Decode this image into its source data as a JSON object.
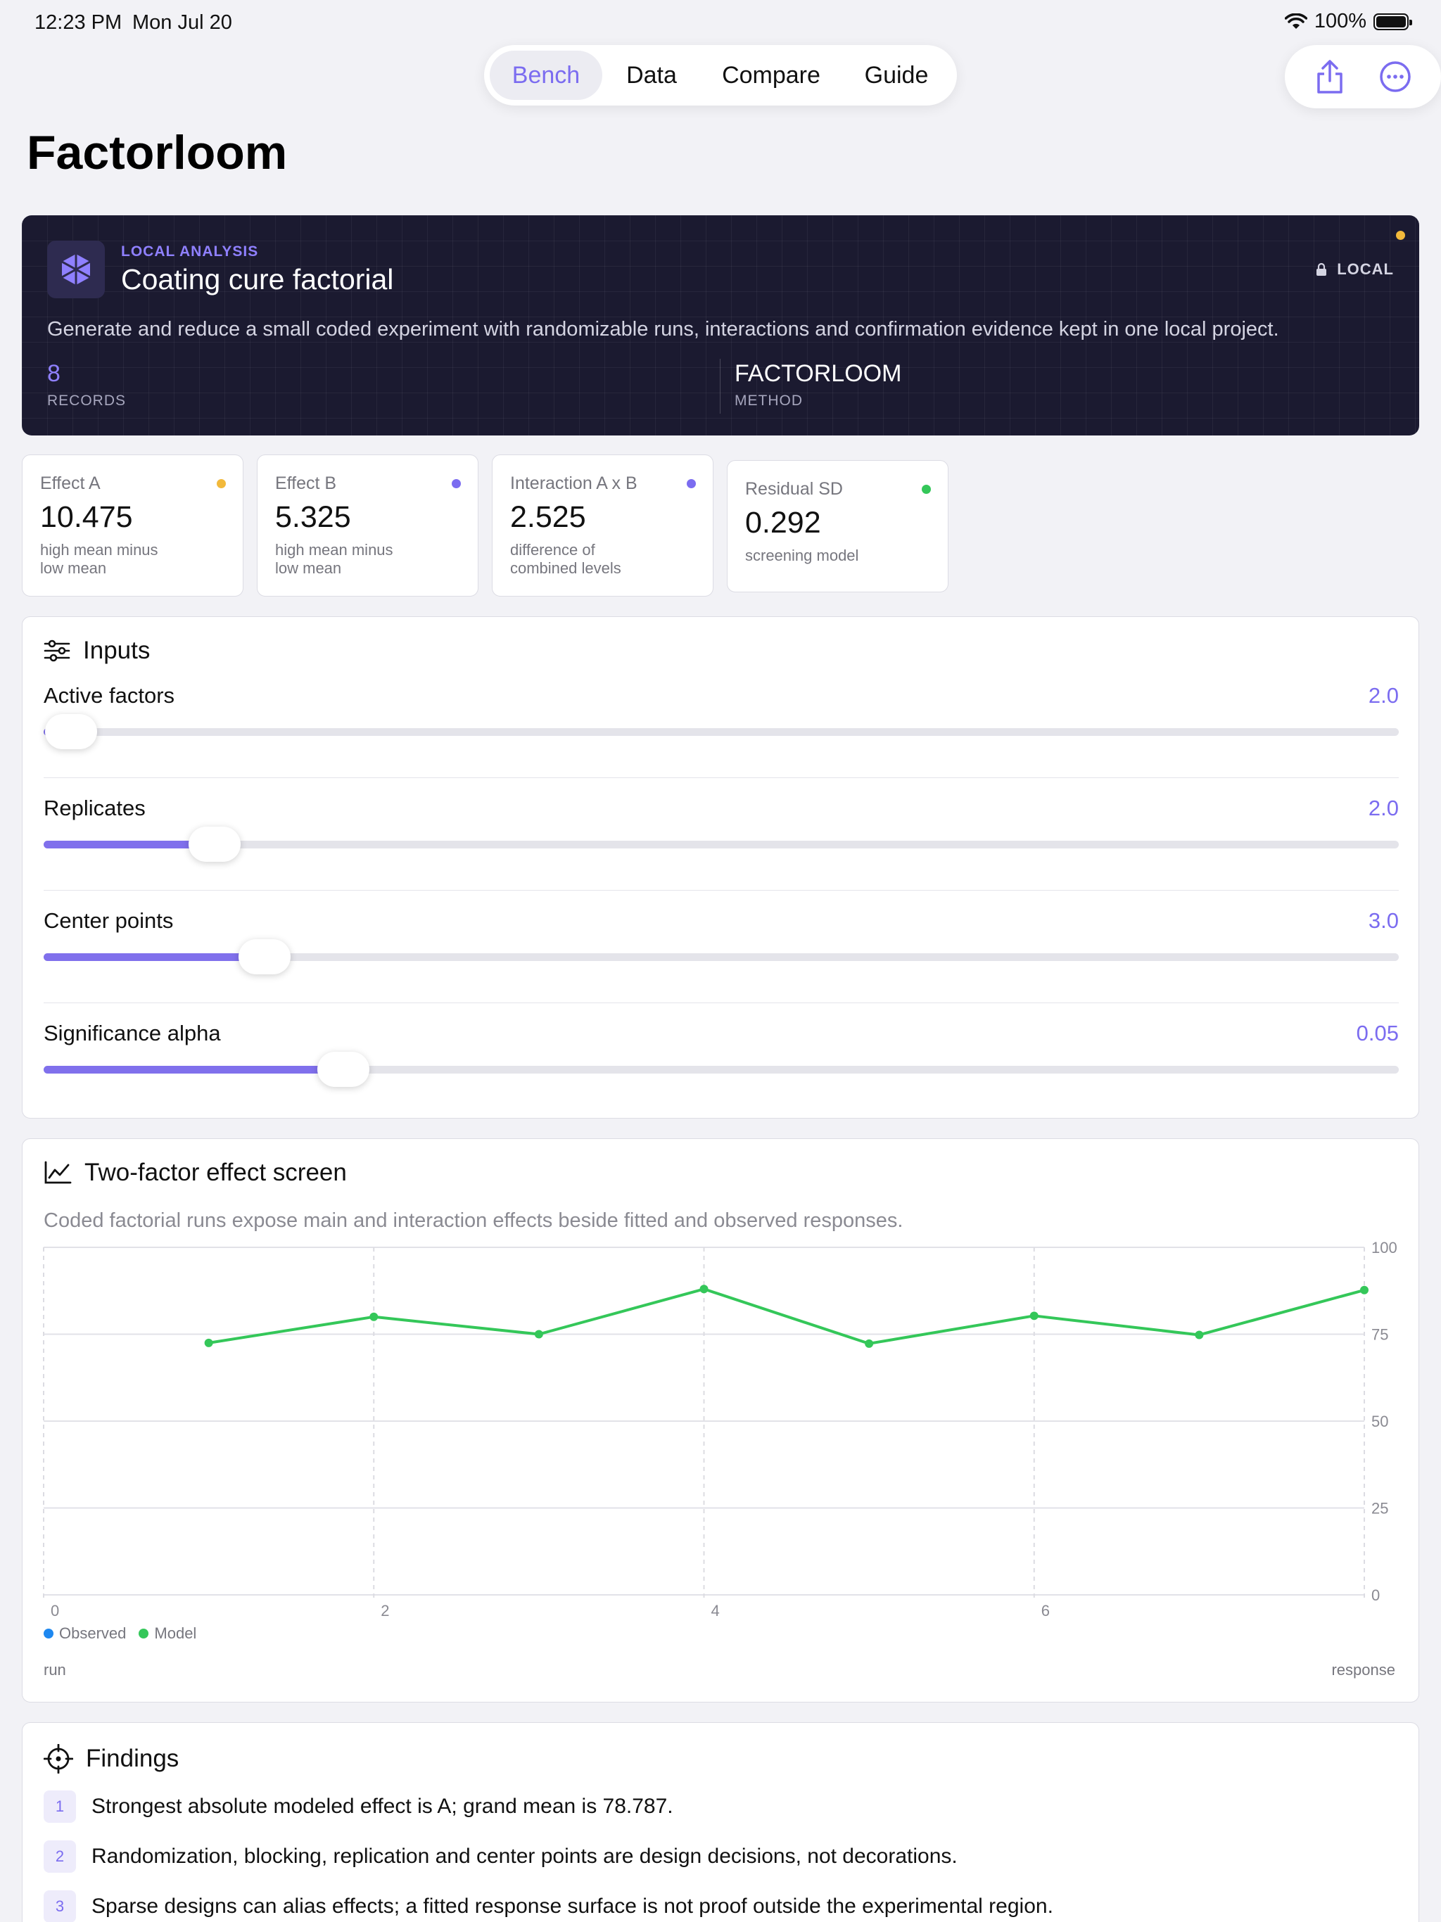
{
  "status": {
    "time": "12:23 PM",
    "date": "Mon Jul 20",
    "battery": "100%"
  },
  "nav": {
    "tabs": [
      "Bench",
      "Data",
      "Compare",
      "Guide"
    ],
    "active": 0
  },
  "page_title": "Factorloom",
  "hero": {
    "eyebrow": "LOCAL ANALYSIS",
    "title": "Coating cure factorial",
    "description": "Generate and reduce a small coded experiment with randomizable runs, interactions and confirmation evidence kept in one local project.",
    "badge": "LOCAL",
    "stat1": {
      "value": "8",
      "label": "RECORDS"
    },
    "stat2": {
      "value": "FACTORLOOM",
      "label": "METHOD"
    }
  },
  "metrics": [
    {
      "label": "Effect A",
      "value": "10.475",
      "note": "high mean minus low mean",
      "color": "#f2b93b"
    },
    {
      "label": "Effect B",
      "value": "5.325",
      "note": "high mean minus low mean",
      "color": "#7b6cf0"
    },
    {
      "label": "Interaction A x B",
      "value": "2.525",
      "note": "difference of combined levels",
      "color": "#7b6cf0"
    },
    {
      "label": "Residual SD",
      "value": "0.292",
      "note": "screening model",
      "color": "#34c759"
    }
  ],
  "inputs": {
    "title": "Inputs",
    "sliders": [
      {
        "label": "Active factors",
        "value": "2.0",
        "fraction": 0.02
      },
      {
        "label": "Replicates",
        "value": "2.0",
        "fraction": 0.126
      },
      {
        "label": "Center points",
        "value": "3.0",
        "fraction": 0.163
      },
      {
        "label": "Significance alpha",
        "value": "0.05",
        "fraction": 0.221
      }
    ]
  },
  "chart": {
    "title": "Two-factor effect screen",
    "subtitle": "Coded factorial runs expose main and interaction effects beside fitted and observed responses.",
    "legend": [
      {
        "name": "Observed",
        "color": "#1e88f0"
      },
      {
        "name": "Model",
        "color": "#34c759"
      }
    ],
    "xlabel": "run",
    "ylabel": "response"
  },
  "chart_data": {
    "type": "line",
    "x": [
      1,
      2,
      3,
      4,
      5,
      6,
      7,
      8
    ],
    "series": [
      {
        "name": "Model",
        "color": "#34c759",
        "values": [
          72.5,
          80.0,
          75.0,
          88.0,
          72.3,
          80.3,
          74.8,
          87.7
        ]
      }
    ],
    "xlim": [
      0,
      8
    ],
    "ylim": [
      0,
      100
    ],
    "xticks": [
      "0",
      "2",
      "4",
      "6"
    ],
    "yticks": [
      "100",
      "75",
      "50",
      "25",
      "0"
    ],
    "xlabel": "run",
    "ylabel": "response",
    "grid": true,
    "legend_position": "bottom-left"
  },
  "findings": {
    "title": "Findings",
    "items": [
      "Strongest absolute modeled effect is A; grand mean is 78.787.",
      "Randomization, blocking, replication and center points are design decisions, not decorations.",
      "Sparse designs can alias effects; a fitted response surface is not proof outside the experimental region."
    ]
  }
}
